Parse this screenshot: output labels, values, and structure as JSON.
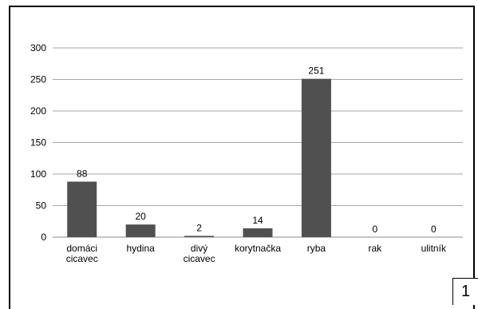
{
  "page_number": "1",
  "chart_data": {
    "type": "bar",
    "categories": [
      [
        "domáci",
        "cicavec"
      ],
      [
        "hydina"
      ],
      [
        "divý",
        "cicavec"
      ],
      [
        "korytnačka"
      ],
      [
        "ryba"
      ],
      [
        "rak"
      ],
      [
        "ulitník"
      ]
    ],
    "values": [
      88,
      20,
      2,
      14,
      251,
      0,
      0
    ],
    "data_labels": [
      "88",
      "20",
      "2",
      "14",
      "251",
      "0",
      "0"
    ],
    "y_ticks": [
      "0",
      "50",
      "100",
      "150",
      "200",
      "250",
      "300"
    ],
    "ylim": [
      0,
      300
    ],
    "grid": true,
    "legend": "none",
    "colors": {
      "bar": "#505050",
      "grid": "#a6a6a6"
    }
  }
}
